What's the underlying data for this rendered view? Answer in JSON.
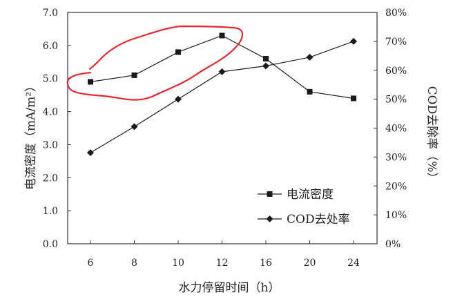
{
  "chart_data": {
    "type": "line",
    "categories": [
      "6",
      "8",
      "10",
      "12",
      "16",
      "20",
      "24"
    ],
    "xlabel": "水力停留时间（h）",
    "ylabel_left": "电流密度（mA/m²）",
    "ylabel_right": "COD去除率（%）",
    "ylim_left": [
      0.0,
      7.0
    ],
    "ylim_right": [
      0,
      80
    ],
    "yticks_left": [
      "0.0",
      "1.0",
      "2.0",
      "3.0",
      "4.0",
      "5.0",
      "6.0",
      "7.0"
    ],
    "yticks_right": [
      "0%",
      "10%",
      "20%",
      "30%",
      "40%",
      "50%",
      "60%",
      "70%",
      "80%"
    ],
    "grid": false,
    "legend_position": "bottom-right",
    "series": [
      {
        "name": "电流密度",
        "axis": "left",
        "marker": "square",
        "values": [
          4.9,
          5.1,
          5.8,
          6.3,
          5.6,
          4.6,
          4.4
        ]
      },
      {
        "name": "COD去处率",
        "axis": "right",
        "marker": "diamond",
        "values": [
          31.5,
          40.5,
          50.0,
          59.5,
          61.5,
          64.5,
          70.0
        ]
      }
    ],
    "colors": {
      "series": "#1a1a1a",
      "annotation": "#e8262b"
    }
  }
}
